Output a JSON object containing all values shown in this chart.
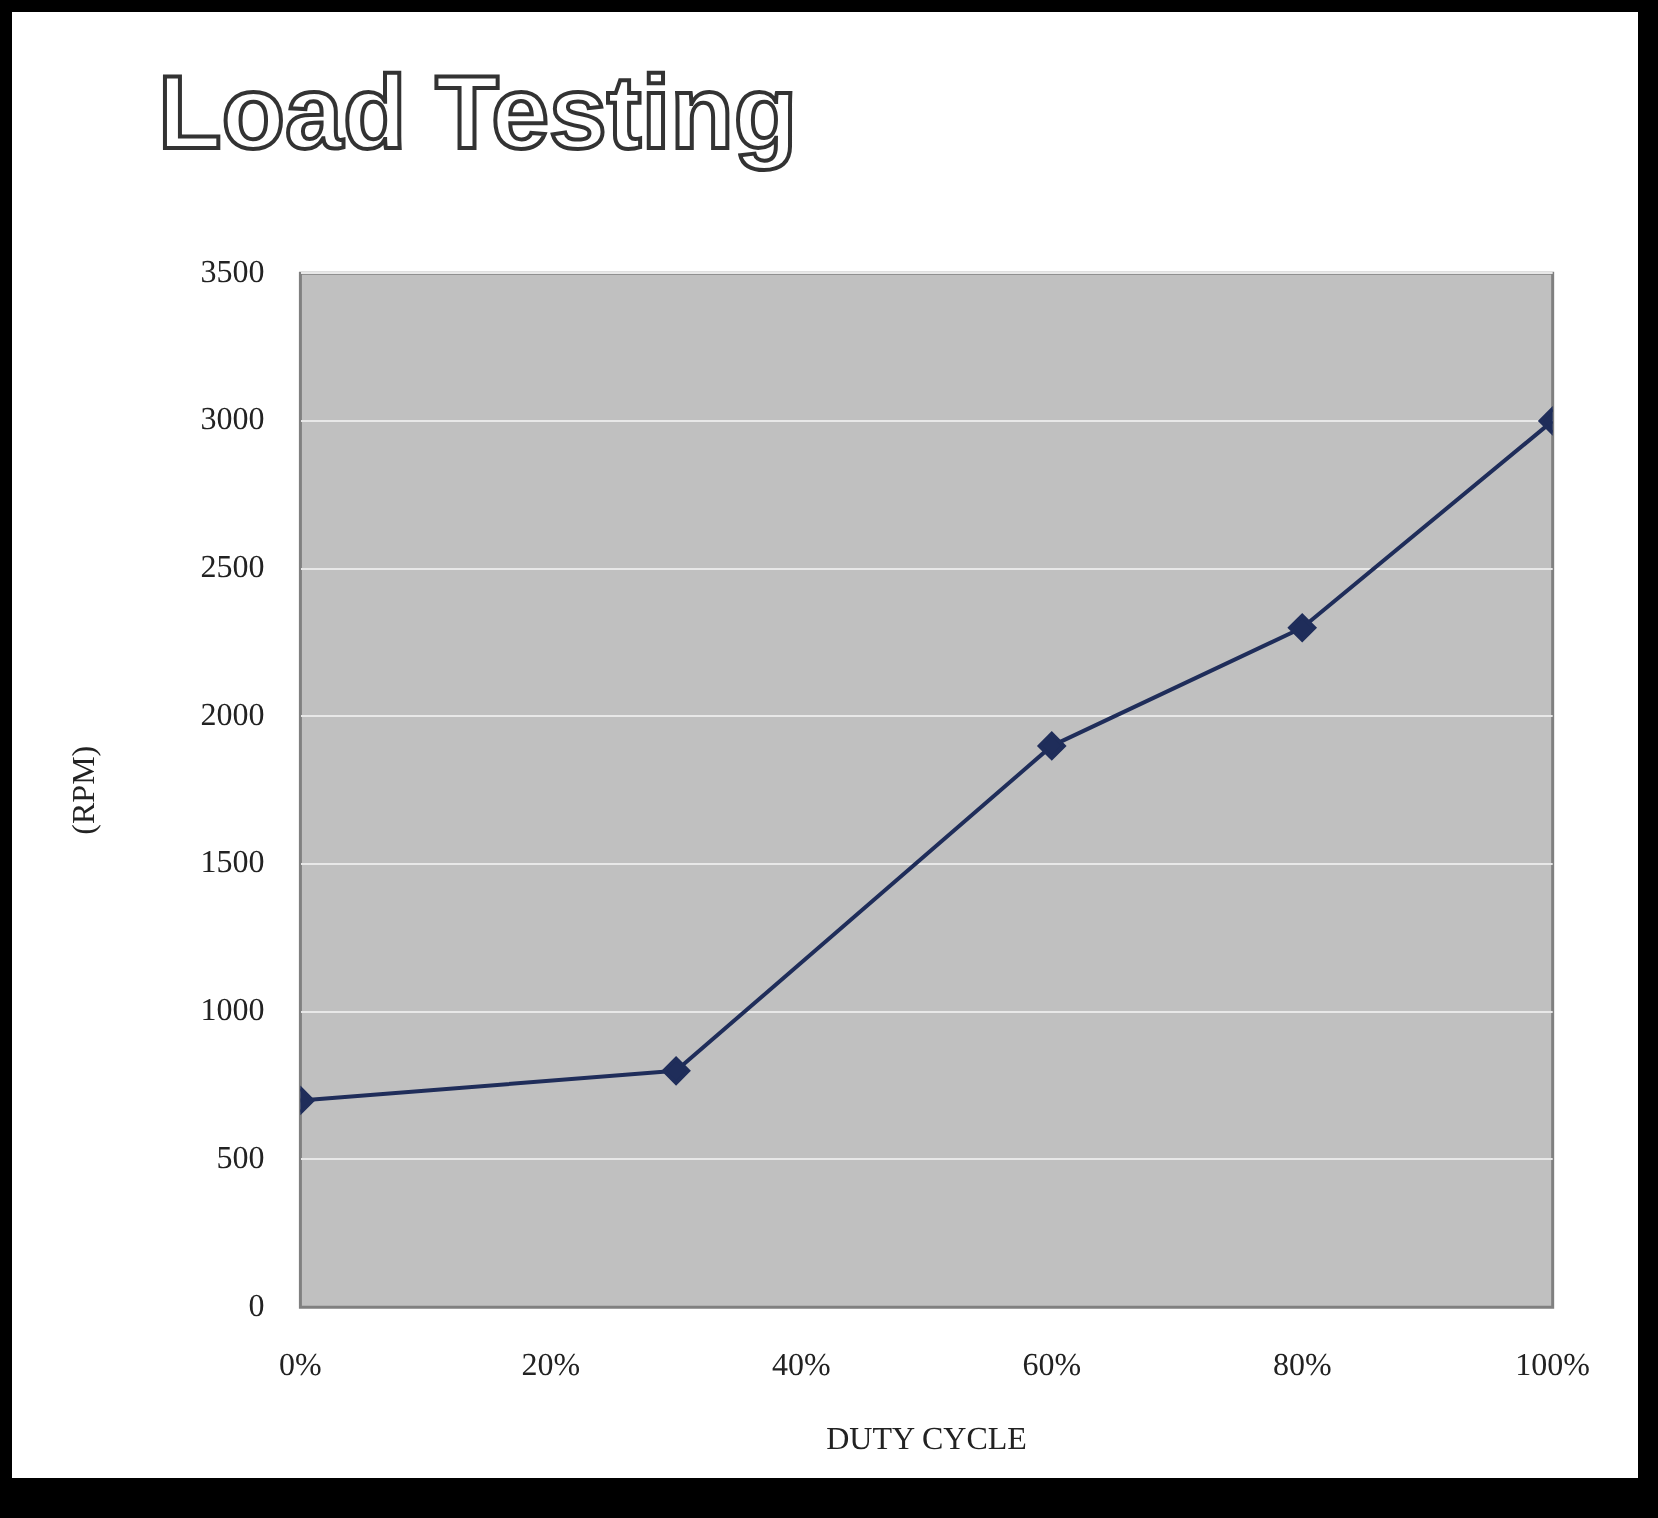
{
  "chart_data": {
    "type": "line",
    "title": "Load Testing",
    "xlabel": "DUTY CYCLE",
    "ylabel": "(RPM)",
    "x": [
      0,
      30,
      60,
      80,
      100
    ],
    "series": [
      {
        "color": "#1f2d5a",
        "values": [
          700,
          800,
          1900,
          2300,
          3000
        ]
      }
    ],
    "xlim": [
      0,
      100
    ],
    "xticks": [
      {
        "value": 0,
        "label": "0%"
      },
      {
        "value": 20,
        "label": "20%"
      },
      {
        "value": 40,
        "label": "40%"
      },
      {
        "value": 60,
        "label": "60%"
      },
      {
        "value": 80,
        "label": "80%"
      },
      {
        "value": 100,
        "label": "100%"
      }
    ],
    "ylim": [
      0,
      3500
    ],
    "yticks": [
      0,
      500,
      1000,
      1500,
      2000,
      2500,
      3000,
      3500
    ],
    "grid": "y",
    "legend": false,
    "marker": "diamond",
    "line_style": "solid"
  }
}
